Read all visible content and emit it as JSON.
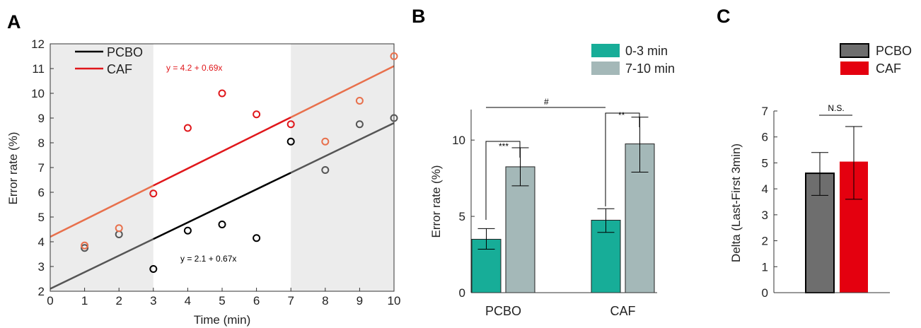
{
  "panels": [
    "A",
    "B",
    "C"
  ],
  "colors": {
    "pcbo_line": "#000000",
    "caf_line": "#e0171b",
    "caf_pts_light": "#e8704c",
    "pcbo_pts_light": "#555555",
    "shade": "#ececec",
    "teal": "#17ad98",
    "gray_blue": "#a4b8b8",
    "pcbo_bar": "#6e6e6e",
    "caf_bar": "#e4000f"
  },
  "chart_data": [
    {
      "type": "scatter",
      "panel": "A",
      "xlabel": "Time (min)",
      "ylabel": "Error rate (%)",
      "xlim": [
        0,
        10
      ],
      "ylim": [
        2,
        12
      ],
      "xticks": [
        "0",
        "1",
        "2",
        "3",
        "4",
        "5",
        "6",
        "7",
        "8",
        "9",
        "10"
      ],
      "yticks": [
        "2",
        "3",
        "4",
        "5",
        "6",
        "7",
        "8",
        "9",
        "10",
        "11",
        "12"
      ],
      "shaded_ranges": [
        [
          0,
          3
        ],
        [
          7,
          10
        ]
      ],
      "legend": [
        "PCBO",
        "CAF"
      ],
      "series": [
        {
          "name": "PCBO",
          "x": [
            1,
            2,
            3,
            4,
            5,
            6,
            7,
            8,
            9,
            10
          ],
          "y": [
            3.75,
            4.3,
            2.9,
            4.45,
            4.7,
            4.15,
            8.05,
            6.9,
            8.75,
            9.0
          ],
          "fit": {
            "intercept": 2.1,
            "slope": 0.67,
            "label": "y = 2.1 + 0.67x"
          }
        },
        {
          "name": "CAF",
          "x": [
            1,
            2,
            3,
            4,
            5,
            6,
            7,
            8,
            9,
            10
          ],
          "y": [
            3.85,
            4.55,
            5.95,
            8.6,
            10.0,
            9.15,
            8.75,
            8.05,
            9.7,
            11.5
          ],
          "fit": {
            "intercept": 4.2,
            "slope": 0.69,
            "label": "y = 4.2 + 0.69x"
          }
        }
      ]
    },
    {
      "type": "bar",
      "panel": "B",
      "ylabel": "Error rate (%)",
      "categories": [
        "PCBO",
        "CAF"
      ],
      "ylim": [
        0,
        12
      ],
      "yticks": [
        "0",
        "5",
        "10"
      ],
      "series": [
        {
          "name": "0-3 min",
          "values": [
            3.5,
            4.75
          ],
          "err_low": [
            2.85,
            3.95
          ],
          "err_high": [
            4.2,
            5.5
          ]
        },
        {
          "name": "7-10 min",
          "values": [
            8.25,
            9.75
          ],
          "err_low": [
            7.0,
            7.9
          ],
          "err_high": [
            9.5,
            11.5
          ]
        }
      ],
      "annotations": {
        "pcbo_sig": "***",
        "caf_sig": "**",
        "between": "#"
      }
    },
    {
      "type": "bar",
      "panel": "C",
      "ylabel": "Delta (Last-First 3min)",
      "categories": [
        "PCBO",
        "CAF"
      ],
      "values": [
        4.6,
        5.05
      ],
      "err_low": [
        3.75,
        3.6
      ],
      "err_high": [
        5.4,
        6.4
      ],
      "ylim": [
        0,
        7
      ],
      "yticks": [
        "0",
        "1",
        "2",
        "3",
        "4",
        "5",
        "6",
        "7"
      ],
      "legend": [
        "PCBO",
        "CAF"
      ],
      "annotation": "N.S."
    }
  ]
}
